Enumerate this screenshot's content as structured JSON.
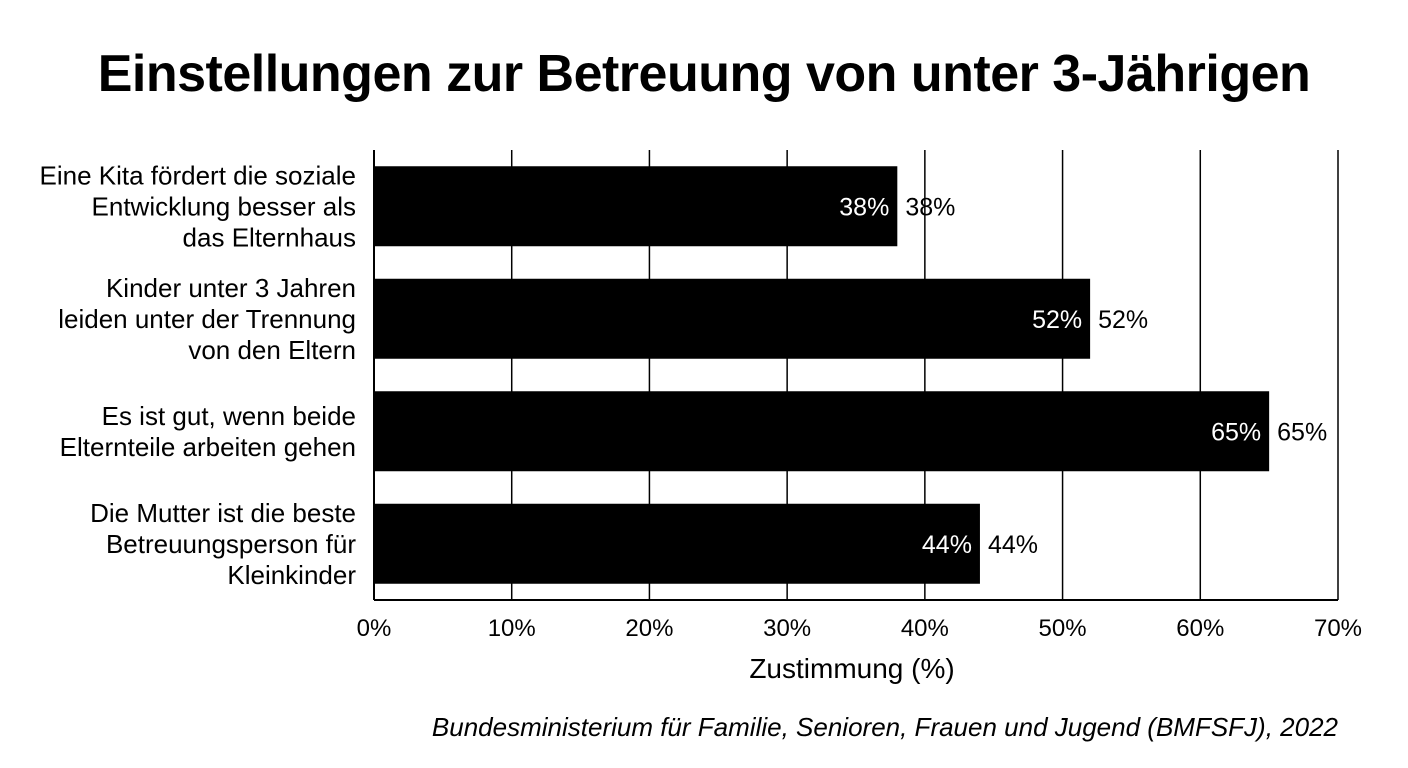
{
  "chart_data": {
    "type": "bar",
    "orientation": "horizontal",
    "title": "Einstellungen zur Betreuung von unter 3-Jährigen",
    "categories": [
      [
        "Eine Kita fördert die soziale",
        "Entwicklung besser als",
        "das Elternhaus"
      ],
      [
        "Kinder unter 3 Jahren",
        "leiden unter der Trennung",
        "von den Eltern"
      ],
      [
        "Es ist gut, wenn beide",
        "Elternteile arbeiten gehen"
      ],
      [
        "Die Mutter ist die beste",
        "Betreuungsperson für",
        "Kleinkinder"
      ]
    ],
    "values": [
      38,
      52,
      65,
      44
    ],
    "value_labels": [
      "38%",
      "52%",
      "65%",
      "44%"
    ],
    "xlabel": "Zustimmung (%)",
    "ylabel": "",
    "xlim": [
      0,
      70
    ],
    "xticks": [
      0,
      10,
      20,
      30,
      40,
      50,
      60,
      70
    ],
    "xtick_labels": [
      "0%",
      "10%",
      "20%",
      "30%",
      "40%",
      "50%",
      "60%",
      "70%"
    ],
    "grid": true,
    "bar_color": "#000000",
    "source": "Bundesministerium für Familie, Senioren, Frauen und Jugend (BMFSFJ), 2022"
  }
}
